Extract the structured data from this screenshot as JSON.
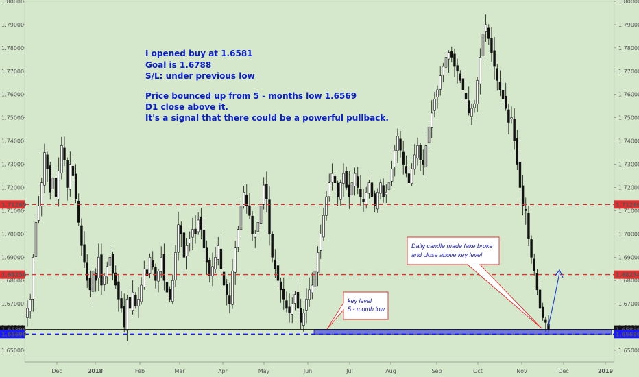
{
  "chart_data": {
    "type": "candlestick",
    "ylim": [
      1.645,
      1.8
    ],
    "y_ticks": [
      "1.80000",
      "1.79000",
      "1.78000",
      "1.77000",
      "1.76000",
      "1.75000",
      "1.74000",
      "1.73000",
      "1.72000",
      "1.71000",
      "1.70000",
      "1.69000",
      "1.68000",
      "1.67000",
      "1.66000",
      "1.65000"
    ],
    "x_ticks": [
      "Dec",
      "2018",
      "Feb",
      "Mar",
      "Apr",
      "May",
      "Jun",
      "Jul",
      "Aug",
      "Sep",
      "Oct",
      "Nov",
      "Dec",
      "2019"
    ],
    "close_series": [
      1.668,
      1.672,
      1.69,
      1.705,
      1.712,
      1.722,
      1.735,
      1.728,
      1.718,
      1.724,
      1.716,
      1.727,
      1.738,
      1.732,
      1.72,
      1.73,
      1.725,
      1.715,
      1.705,
      1.695,
      1.688,
      1.68,
      1.676,
      1.684,
      1.68,
      1.69,
      1.678,
      1.682,
      1.686,
      1.69,
      1.683,
      1.678,
      1.672,
      1.668,
      1.66,
      1.672,
      1.668,
      1.675,
      1.669,
      1.672,
      1.678,
      1.685,
      1.682,
      1.69,
      1.686,
      1.68,
      1.684,
      1.69,
      1.68,
      1.675,
      1.672,
      1.68,
      1.692,
      1.704,
      1.7,
      1.69,
      1.695,
      1.698,
      1.702,
      1.7,
      1.706,
      1.702,
      1.694,
      1.688,
      1.682,
      1.686,
      1.69,
      1.695,
      1.685,
      1.678,
      1.674,
      1.67,
      1.684,
      1.694,
      1.702,
      1.712,
      1.718,
      1.712,
      1.708,
      1.7,
      1.7,
      1.705,
      1.712,
      1.721,
      1.715,
      1.7,
      1.69,
      1.685,
      1.68,
      1.676,
      1.672,
      1.668,
      1.666,
      1.67,
      1.674,
      1.668,
      1.662,
      1.666,
      1.672,
      1.676,
      1.678,
      1.684,
      1.692,
      1.7,
      1.708,
      1.716,
      1.722,
      1.726,
      1.722,
      1.716,
      1.722,
      1.726,
      1.72,
      1.716,
      1.722,
      1.726,
      1.72,
      1.716,
      1.714,
      1.718,
      1.722,
      1.716,
      1.712,
      1.718,
      1.722,
      1.716,
      1.718,
      1.722,
      1.728,
      1.736,
      1.742,
      1.736,
      1.73,
      1.726,
      1.722,
      1.728,
      1.734,
      1.738,
      1.732,
      1.73,
      1.738,
      1.746,
      1.752,
      1.758,
      1.762,
      1.768,
      1.772,
      1.776,
      1.778,
      1.776,
      1.772,
      1.77,
      1.766,
      1.762,
      1.758,
      1.752,
      1.754,
      1.756,
      1.766,
      1.776,
      1.786,
      1.79,
      1.784,
      1.778,
      1.772,
      1.766,
      1.762,
      1.758,
      1.754,
      1.748,
      1.75,
      1.74,
      1.73,
      1.72,
      1.712,
      1.71,
      1.698,
      1.69,
      1.684,
      1.676,
      1.668,
      1.664,
      1.662,
      1.659
    ],
    "horizontal_levels": [
      {
        "value": 1.71269,
        "label": "1.71269",
        "color": "#e03030",
        "style": "dashed"
      },
      {
        "value": 1.68254,
        "label": "1.68254",
        "color": "#e03030",
        "style": "dashed"
      },
      {
        "value": 1.65896,
        "label": "1.65896",
        "color": "#111111",
        "style": "solid"
      },
      {
        "value": 1.65699,
        "label": "1.65699",
        "color": "#1a1aff",
        "style": "dashed"
      }
    ],
    "key_zone": {
      "from": 1.65699,
      "to": 1.65896,
      "color": "#3a3ad8"
    },
    "annotations": {
      "main_note": [
        "I opened buy at 1.6581",
        "Goal is 1.6788",
        "S/L: under previous low",
        "",
        "Price bounced up from 5 - months low 1.6569",
        "D1 close above it.",
        "It's a signal that there could be a powerful pullback."
      ],
      "key_level_note": [
        "key level",
        "5 - month low"
      ],
      "fake_break_note": [
        "Daily candle made fake broke",
        "and close above key level"
      ]
    },
    "colors": {
      "background": "#d6e8cc",
      "candle_bull": "#ffffff",
      "candle_bear": "#111111",
      "annotation_text": "#0a1ecc",
      "arrow": "#1a3ad0"
    }
  }
}
